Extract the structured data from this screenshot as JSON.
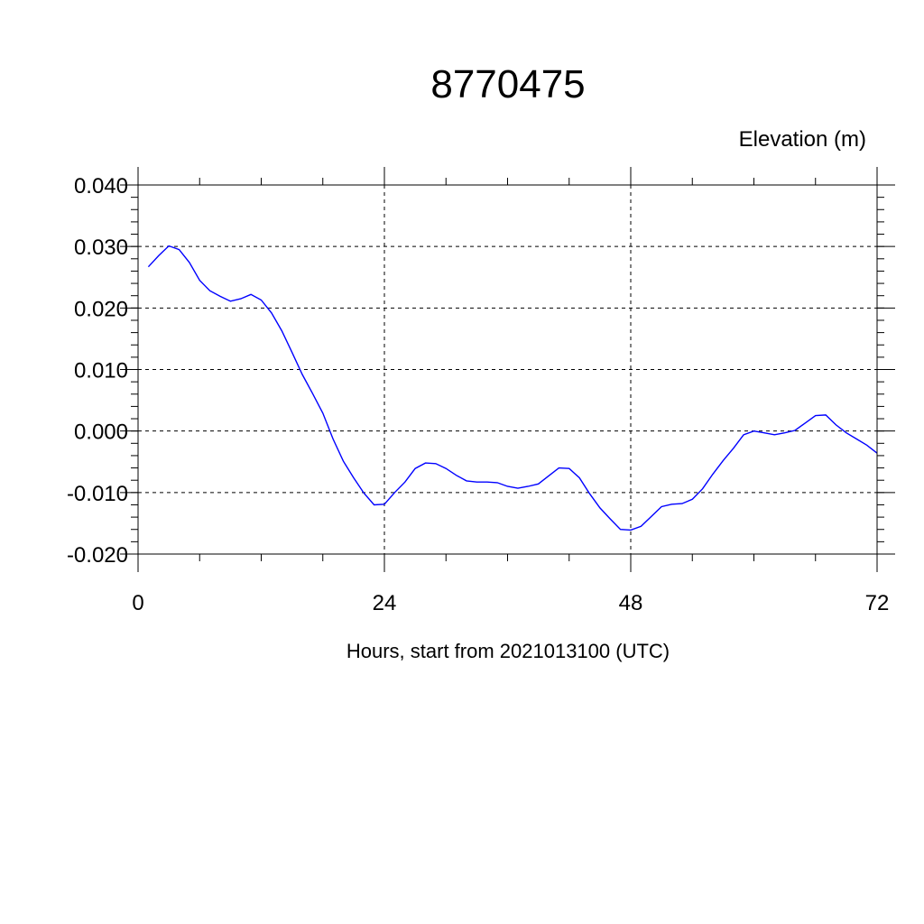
{
  "chart_data": {
    "type": "line",
    "title": "8770475",
    "ylabel": "Elevation (m)",
    "xlabel": "Hours, start from 2021013100 (UTC)",
    "xlim": [
      0,
      72
    ],
    "ylim": [
      -0.02,
      0.04
    ],
    "x_ticks": [
      0,
      24,
      48,
      72
    ],
    "x_tick_labels": [
      "0",
      "24",
      "48",
      "72"
    ],
    "y_ticks": [
      -0.02,
      -0.01,
      0.0,
      0.01,
      0.02,
      0.03,
      0.04
    ],
    "y_tick_labels": [
      "-0.020",
      "-0.010",
      "0.000",
      "0.010",
      "0.020",
      "0.030",
      "0.040"
    ],
    "grid": true,
    "line_color": "#0000ff",
    "series": [
      {
        "x": [
          1,
          2,
          3,
          4,
          5,
          6,
          7,
          8,
          9,
          10,
          11,
          12,
          13,
          14,
          15,
          16,
          17,
          18,
          19,
          20,
          21,
          22,
          23,
          24,
          25,
          26,
          27,
          28,
          29,
          30,
          31,
          32,
          33,
          34,
          35,
          36,
          37,
          38,
          39,
          40,
          41,
          42,
          43,
          44,
          45,
          46,
          47,
          48,
          49,
          50,
          51,
          52,
          53,
          54,
          55,
          56,
          57,
          58,
          59,
          60,
          61,
          62,
          63,
          64,
          65,
          66,
          67,
          68,
          69,
          70,
          71,
          72
        ],
        "y": [
          0.0267,
          0.0285,
          0.0301,
          0.0295,
          0.0274,
          0.0245,
          0.0228,
          0.0219,
          0.0211,
          0.0215,
          0.0222,
          0.0213,
          0.0192,
          0.0163,
          0.0128,
          0.0092,
          0.0061,
          0.0029,
          -0.0013,
          -0.0049,
          -0.0076,
          -0.0101,
          -0.012,
          -0.0119,
          -0.01,
          -0.0083,
          -0.0061,
          -0.0052,
          -0.0053,
          -0.0061,
          -0.0072,
          -0.0081,
          -0.0083,
          -0.0083,
          -0.0084,
          -0.009,
          -0.0093,
          -0.009,
          -0.0086,
          -0.0073,
          -0.006,
          -0.0061,
          -0.0076,
          -0.0102,
          -0.0125,
          -0.0143,
          -0.016,
          -0.0161,
          -0.0155,
          -0.0139,
          -0.0123,
          -0.0119,
          -0.0118,
          -0.0111,
          -0.0094,
          -0.007,
          -0.0048,
          -0.0028,
          -0.0006,
          0.0,
          -0.0003,
          -0.0006,
          -0.0003,
          0.0001,
          0.0013,
          0.0025,
          0.0026,
          0.001,
          -0.0003,
          -0.0013,
          -0.0023,
          -0.0036
        ]
      }
    ]
  }
}
